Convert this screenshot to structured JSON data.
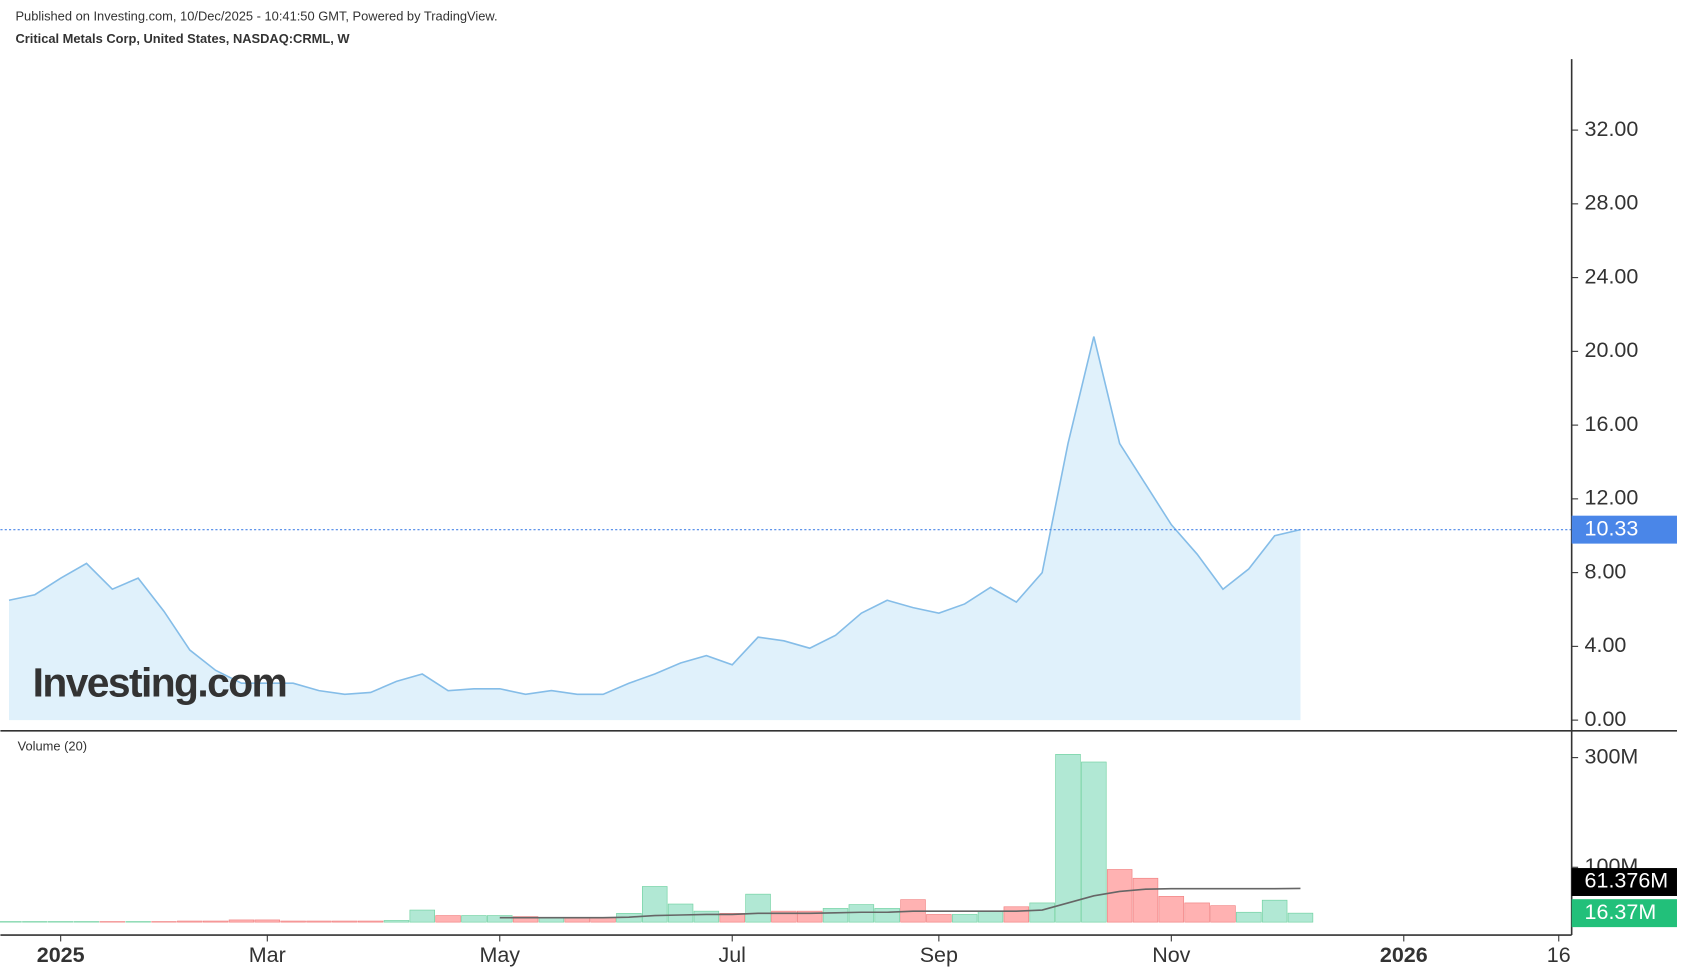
{
  "header": {
    "published": "Published on Investing.com, 10/Dec/2025 - 10:41:50 GMT, Powered by TradingView.",
    "instrument": "Critical Metals Corp, United States, NASDAQ:CRML, W"
  },
  "watermark": "Investing.com",
  "chart_data": [
    {
      "type": "area",
      "color": "#85bde8",
      "fill": "#e0f1fb",
      "last_line_color": "#4a86e8",
      "xlim": [
        0,
        60.5
      ],
      "ylim": [
        -0.58,
        35.85
      ],
      "yticks": [
        {
          "value": 0,
          "label": "0.00"
        },
        {
          "value": 4,
          "label": "4.00"
        },
        {
          "value": 8,
          "label": "8.00"
        },
        {
          "value": 12,
          "label": "12.00"
        },
        {
          "value": 16,
          "label": "16.00"
        },
        {
          "value": 20,
          "label": "20.00"
        },
        {
          "value": 24,
          "label": "24.00"
        },
        {
          "value": 28,
          "label": "28.00"
        },
        {
          "value": 32,
          "label": "32.00"
        }
      ],
      "values": [
        6.5,
        6.8,
        7.7,
        8.5,
        7.1,
        7.7,
        5.9,
        3.8,
        2.7,
        2.0,
        2.0,
        2.0,
        1.6,
        1.4,
        1.5,
        2.1,
        2.5,
        1.6,
        1.7,
        1.7,
        1.4,
        1.6,
        1.4,
        1.4,
        2.0,
        2.5,
        3.1,
        3.5,
        3.0,
        4.5,
        4.3,
        3.9,
        4.6,
        5.8,
        6.5,
        6.1,
        5.8,
        6.3,
        7.2,
        6.4,
        8.0,
        15.0,
        20.8,
        15.0,
        12.8,
        10.6,
        9.0,
        7.1,
        8.2,
        10.0,
        10.33
      ]
    },
    {
      "type": "bar",
      "title": "Volume (20)",
      "xlim": [
        0,
        60.5
      ],
      "ylim": [
        -23.5,
        343
      ],
      "yticks": [
        {
          "value": 100,
          "label": "100M"
        },
        {
          "value": 300,
          "label": "300M"
        }
      ],
      "xticks": [
        {
          "value": 2,
          "label": "2025"
        },
        {
          "value": 10,
          "label": "Mar"
        },
        {
          "value": 19,
          "label": "May"
        },
        {
          "value": 28,
          "label": "Jul"
        },
        {
          "value": 36,
          "label": "Sep"
        },
        {
          "value": 45,
          "label": "Nov"
        },
        {
          "value": 54,
          "label": "2026"
        },
        {
          "value": 60,
          "label": "16"
        }
      ],
      "series": [
        {
          "values": [
            1,
            1,
            1,
            1,
            1,
            1,
            1,
            2,
            2,
            4,
            4,
            2,
            2,
            2,
            2,
            3,
            22,
            12,
            12,
            12,
            10,
            8,
            8,
            8,
            16,
            65,
            33,
            20,
            16,
            51,
            20,
            20,
            25,
            32,
            25,
            41,
            14,
            14,
            20,
            28,
            35,
            306,
            292,
            96,
            80,
            47,
            35,
            30,
            18,
            40,
            16.37
          ],
          "colors": [
            "#a8e6cf",
            "#a8e6cf",
            "#a8e6cf",
            "#a8e6cf",
            "#faa",
            "#a8e6cf",
            "#faa",
            "#faa",
            "#faa",
            "#faa",
            "#faa",
            "#faa",
            "#faa",
            "#faa",
            "#faa",
            "#a8e6cf",
            "#a8e6cf",
            "#faa",
            "#a8e6cf",
            "#a8e6cf",
            "#faa",
            "#a8e6cf",
            "#faa",
            "#faa",
            "#a8e6cf",
            "#a8e6cf",
            "#a8e6cf",
            "#a8e6cf",
            "#faa",
            "#a8e6cf",
            "#faa",
            "#faa",
            "#a8e6cf",
            "#a8e6cf",
            "#a8e6cf",
            "#faa",
            "#faa",
            "#a8e6cf",
            "#a8e6cf",
            "#faa",
            "#a8e6cf",
            "#a8e6cf",
            "#a8e6cf",
            "#faa",
            "#faa",
            "#faa",
            "#faa",
            "#faa",
            "#a8e6cf",
            "#a8e6cf",
            "#a8e6cf"
          ],
          "label_color": "#22c07a",
          "value_labels": [
            null,
            null,
            null,
            null,
            null,
            null,
            null,
            null,
            null,
            null,
            null,
            null,
            null,
            null,
            null,
            null,
            null,
            null,
            null,
            null,
            null,
            null,
            null,
            null,
            null,
            null,
            null,
            null,
            null,
            null,
            null,
            null,
            null,
            null,
            null,
            null,
            null,
            null,
            null,
            null,
            null,
            null,
            null,
            null,
            null,
            null,
            null,
            null,
            null,
            null,
            "16.37M"
          ]
        },
        {
          "type": "line",
          "color": "#666",
          "label_color": "#000",
          "values": [
            null,
            null,
            null,
            null,
            null,
            null,
            null,
            null,
            null,
            null,
            null,
            null,
            null,
            null,
            null,
            null,
            null,
            null,
            null,
            8,
            8,
            8,
            8,
            8,
            9,
            12,
            13,
            14,
            14,
            16,
            16,
            16,
            17,
            18,
            18,
            20,
            20,
            20,
            20,
            20,
            22,
            35,
            48,
            56,
            60,
            61,
            61,
            61,
            61,
            61,
            61.376
          ],
          "value_labels": [
            null,
            null,
            null,
            null,
            null,
            null,
            null,
            null,
            null,
            null,
            null,
            null,
            null,
            null,
            null,
            null,
            null,
            null,
            null,
            null,
            null,
            null,
            null,
            null,
            null,
            null,
            null,
            null,
            null,
            null,
            null,
            null,
            null,
            null,
            null,
            null,
            null,
            null,
            null,
            null,
            null,
            null,
            null,
            null,
            null,
            null,
            null,
            null,
            null,
            null,
            "61.376M"
          ]
        }
      ]
    }
  ]
}
